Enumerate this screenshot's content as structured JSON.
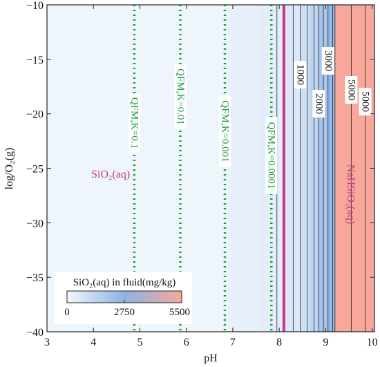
{
  "chart_data": {
    "type": "contour",
    "xlabel": "pH",
    "ylabel": "log/O₂(g)",
    "xlim": [
      3,
      10.05
    ],
    "ylim": [
      -40,
      -10
    ],
    "x_ticks": [
      3,
      4,
      5,
      6,
      7,
      8,
      9,
      10
    ],
    "y_ticks": [
      -10,
      -15,
      -20,
      -25,
      -30,
      -35,
      -40
    ],
    "field_label_left": "SiO₂(aq)",
    "field_label_right": "NaHSiO₃(aq)",
    "field_boundary_ph": 8.1,
    "field_label_color": "#c8378a",
    "qfm_lines": [
      {
        "label": "QFM,K=0.1",
        "ph": 4.88
      },
      {
        "label": "QFM,K=0.01",
        "ph": 5.87
      },
      {
        "label": "QFM,K=0.001",
        "ph": 6.83
      },
      {
        "label": "QFM,K=0.0001",
        "ph": 7.83
      }
    ],
    "qfm_color": "#1a9a3a",
    "contours": [
      {
        "level": 1000,
        "ph": 8.45,
        "labeled": true
      },
      {
        "level": 2000,
        "ph": 8.85,
        "labeled": true
      },
      {
        "level": 3000,
        "ph": 9.05,
        "labeled": true
      },
      {
        "level": 5000,
        "ph": 9.55,
        "labeled": true
      },
      {
        "level": 5000,
        "ph": 9.85,
        "labeled": true
      }
    ],
    "colorbar": {
      "title": "SiO₂(aq) in fluid(mg/kg)",
      "min": 0,
      "mid": 2750,
      "max": 5500,
      "tick_labels": [
        "0",
        "2750",
        "5500"
      ],
      "colors": [
        "#f2f7fb",
        "#8bb3e4",
        "#f7a89a"
      ]
    }
  }
}
